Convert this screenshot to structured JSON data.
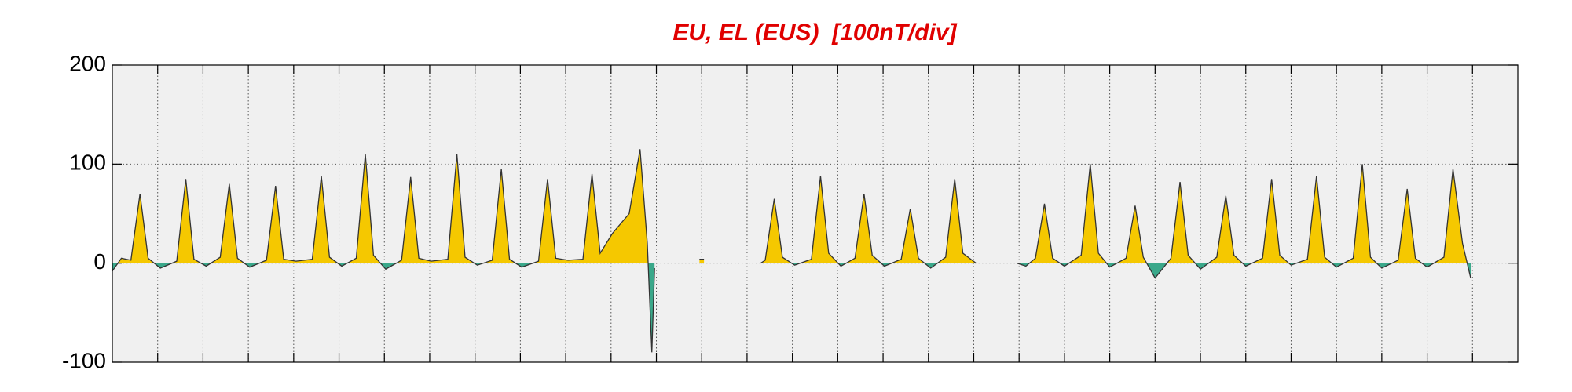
{
  "chart_data": {
    "type": "line",
    "title": "EU, EL (EUS)  [100nT/div]",
    "xlim": [
      0,
      31
    ],
    "xticks": [
      1,
      2,
      3,
      4,
      5,
      6,
      7,
      8,
      9,
      10,
      11,
      12,
      13,
      14,
      15,
      16,
      17,
      18,
      19,
      20,
      21,
      22,
      23,
      24,
      25,
      26,
      27,
      28,
      29,
      30
    ],
    "ylim": [
      -100,
      200
    ],
    "yticks": [
      -100,
      0,
      100,
      200
    ],
    "grid": true,
    "series": [
      {
        "color": "#333333",
        "fill_positive": "#f5c800",
        "fill_negative": "#3aa88a",
        "x": [
          0.0,
          0.2,
          0.41,
          0.61,
          0.79,
          1.06,
          1.42,
          1.62,
          1.8,
          2.07,
          2.38,
          2.58,
          2.76,
          3.03,
          3.4,
          3.6,
          3.78,
          4.05,
          4.41,
          4.61,
          4.79,
          5.06,
          5.38,
          5.58,
          5.76,
          6.03,
          6.38,
          6.58,
          6.76,
          7.03,
          7.4,
          7.6,
          7.78,
          8.05,
          8.38,
          8.58,
          8.76,
          9.03,
          9.4,
          9.6,
          9.78,
          10.05,
          10.38,
          10.58,
          10.76,
          11.03,
          11.4,
          11.64,
          11.8,
          11.9,
          11.96,
          12.4,
          12.95,
          13.05,
          13.6,
          14.3,
          14.4,
          14.6,
          14.78,
          15.05,
          15.42,
          15.62,
          15.8,
          16.07,
          16.38,
          16.58,
          16.76,
          17.03,
          17.4,
          17.6,
          17.78,
          18.05,
          18.38,
          18.58,
          18.76,
          19.05,
          19.5,
          19.95,
          20.15,
          20.36,
          20.56,
          20.74,
          21.0,
          21.37,
          21.57,
          21.75,
          22.0,
          22.36,
          22.56,
          22.74,
          23.0,
          23.35,
          23.55,
          23.73,
          24.0,
          24.36,
          24.56,
          24.74,
          25.0,
          25.37,
          25.57,
          25.75,
          26.0,
          26.36,
          26.56,
          26.74,
          27.0,
          27.37,
          27.57,
          27.75,
          28.0,
          28.36,
          28.56,
          28.74,
          29.0,
          29.37,
          29.57,
          29.78,
          29.96
        ],
        "values": [
          -8,
          5,
          3,
          70,
          5,
          -5,
          2,
          85,
          4,
          -3,
          6,
          80,
          5,
          -4,
          3,
          78,
          4,
          2,
          4,
          88,
          6,
          -3,
          5,
          110,
          8,
          -6,
          3,
          87,
          5,
          2,
          4,
          110,
          6,
          -2,
          3,
          95,
          4,
          -4,
          2,
          85,
          5,
          3,
          4,
          90,
          10,
          30,
          50,
          115,
          20,
          -90,
          -5,
          null,
          4,
          4,
          null,
          0,
          3,
          65,
          6,
          -2,
          4,
          88,
          10,
          -3,
          5,
          70,
          8,
          -3,
          4,
          55,
          5,
          -5,
          6,
          85,
          10,
          0,
          null,
          0,
          -3,
          5,
          60,
          5,
          -3,
          8,
          100,
          10,
          -4,
          5,
          58,
          6,
          -15,
          5,
          82,
          8,
          -6,
          6,
          68,
          8,
          -3,
          5,
          85,
          8,
          -2,
          4,
          88,
          6,
          -4,
          5,
          100,
          6,
          -5,
          3,
          75,
          5,
          -4,
          6,
          95,
          20,
          -15
        ]
      }
    ]
  }
}
